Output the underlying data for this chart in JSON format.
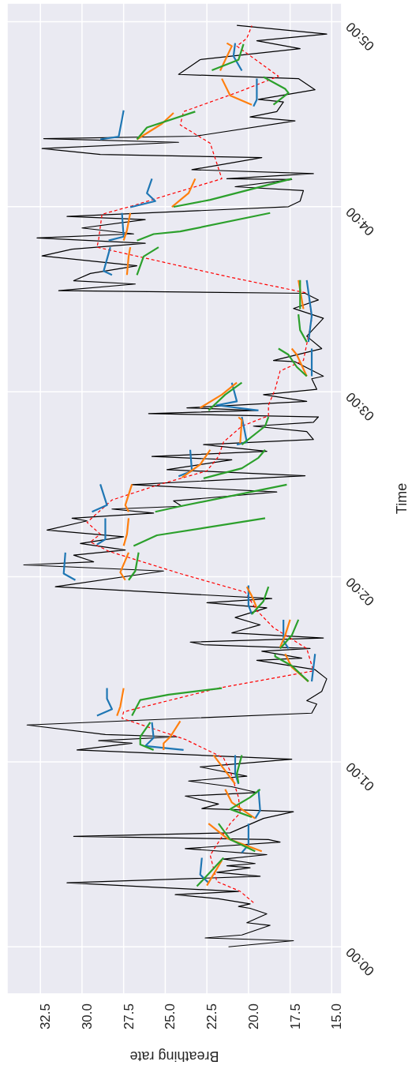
{
  "chart_data": {
    "type": "line",
    "orientation": "horizontal",
    "xlabel": "Breathing rate",
    "ylabel": "Time",
    "ylim": [
      -0.255,
      5.1
    ],
    "xlim": [
      34.5,
      14.4
    ],
    "yticks": [
      {
        "value": 0,
        "label": "00:00"
      },
      {
        "value": 1,
        "label": "01:00"
      },
      {
        "value": 2,
        "label": "02:00"
      },
      {
        "value": 3,
        "label": "03:00"
      },
      {
        "value": 4,
        "label": "04:00"
      },
      {
        "value": 5,
        "label": "05:00"
      }
    ],
    "xticks": [
      {
        "value": 32.5,
        "label": "32.5"
      },
      {
        "value": 30,
        "label": "30.0"
      },
      {
        "value": 27.5,
        "label": "27.5"
      },
      {
        "value": 25,
        "label": "25.0"
      },
      {
        "value": 22.5,
        "label": "22.5"
      },
      {
        "value": 20,
        "label": "20.0"
      },
      {
        "value": 17.5,
        "label": "17.5"
      },
      {
        "value": 15,
        "label": "15.0"
      }
    ],
    "grid": true,
    "legend": false,
    "marker": "none",
    "series": [
      {
        "color": "#000000",
        "line_style": "solid",
        "x": [
          0,
          0.033,
          0.048,
          0.064,
          0.116,
          0.13,
          0.178,
          0.208,
          0.218,
          0.232,
          0.26,
          0.282,
          0.299,
          0.346,
          0.381,
          0.403,
          0.427,
          0.438,
          0.45,
          0.474,
          0.498,
          0.531,
          0.566,
          0.58,
          0.597,
          0.616,
          0.694,
          0.73,
          0.747,
          0.772,
          0.815,
          0.834,
          0.865,
          0.896,
          0.922,
          0.972,
          1.014,
          1.064,
          1.1,
          1.114,
          1.135,
          1.147,
          1.199,
          1.263,
          1.312,
          1.33,
          1.38,
          1.448,
          1.498,
          1.548,
          1.56,
          1.597,
          1.612,
          1.633,
          1.647,
          1.669,
          1.697,
          1.74,
          1.78,
          1.832,
          1.86,
          1.882,
          1.946,
          2.031,
          2.064,
          2.081,
          2.117,
          2.145,
          2.18,
          2.216,
          2.252,
          2.302,
          2.316,
          2.344,
          2.366,
          2.381,
          2.41,
          2.458,
          2.498,
          2.546,
          2.579,
          2.632,
          2.65,
          2.678,
          2.714,
          2.742,
          2.785,
          2.814,
          2.835,
          2.864,
          2.882,
          2.899,
          2.913,
          2.948,
          2.984,
          3.013,
          3.07,
          3.084,
          3.112,
          3.162,
          3.169,
          3.233,
          3.3,
          3.397,
          3.45,
          3.496,
          3.532,
          3.546,
          3.582,
          3.6,
          3.639,
          3.681,
          3.734,
          3.77,
          3.802,
          3.831,
          3.853,
          3.885,
          3.93,
          3.947,
          4.0,
          4.03,
          4.087,
          4.108,
          4.147,
          4.151,
          4.179,
          4.2,
          4.265,
          4.282,
          4.314,
          4.348,
          4.368,
          4.381,
          4.464,
          4.485,
          4.514,
          4.566,
          4.58,
          4.632,
          4.692,
          4.715,
          4.764,
          4.795,
          4.854,
          4.897,
          4.933,
          4.98
        ],
        "values": [
          21.2,
          17.3,
          22.6,
          20.4,
          18.7,
          20.1,
          18.9,
          19.9,
          20.6,
          19.9,
          21.8,
          24.4,
          20.6,
          30.9,
          19.3,
          21.9,
          19.9,
          21.3,
          19.6,
          21.5,
          18.9,
          23.8,
          18.1,
          18.8,
          30.5,
          21.1,
          19.1,
          17.3,
          22.8,
          21.8,
          23.8,
          19.5,
          21.0,
          23.6,
          20.1,
          22.9,
          17.4,
          30.3,
          27.0,
          29.0,
          24.3,
          28.6,
          33.3,
          16.2,
          15.9,
          16.5,
          15.6,
          15.3,
          16.0,
          19.5,
          16.8,
          19.2,
          16.3,
          22.7,
          23.5,
          15.5,
          21.0,
          19.3,
          20.8,
          18.9,
          22.5,
          18.6,
          31.6,
          25.1,
          33.5,
          29.3,
          30.5,
          27.4,
          30.1,
          27.5,
          32.1,
          29.7,
          30.6,
          25.7,
          28.2,
          24.0,
          24.5,
          18.3,
          27.0,
          16.6,
          24.9,
          21.0,
          25.8,
          18.9,
          22.7,
          16.1,
          16.5,
          19.7,
          16.1,
          15.8,
          26.0,
          19.5,
          23.7,
          16.5,
          19.1,
          15.9,
          16.2,
          15.5,
          16.1,
          17.2,
          18.5,
          15.6,
          16.5,
          15.5,
          17.3,
          15.8,
          16.6,
          31.4,
          26.8,
          30.5,
          29.5,
          26.7,
          32.4,
          30.6,
          26.2,
          32.7,
          26.9,
          30.0,
          26.2,
          30.9,
          17.6,
          16.9,
          16.7,
          20.8,
          17.4,
          21.3,
          16.1,
          23.4,
          19.2,
          28.9,
          32.4,
          24.2,
          32.3,
          23.2,
          17.2,
          19.9,
          18.3,
          17.9,
          19.4,
          16.0,
          17.0,
          24.2,
          23.4,
          22.9,
          16.9,
          19.5,
          15.3,
          20.7
        ]
      },
      {
        "color": "#ff0000",
        "line_style": "dashed",
        "x": [
          0.239,
          0.3,
          0.353,
          0.495,
          0.566,
          0.666,
          0.723,
          0.808,
          0.95,
          1.021,
          1.121,
          1.235,
          1.27,
          1.398,
          1.491,
          1.612,
          1.725,
          1.818,
          1.917,
          2.017,
          2.138,
          2.188,
          2.23,
          2.294,
          2.415,
          2.5,
          2.572,
          2.65,
          2.728,
          2.814,
          2.87,
          2.927,
          3.013,
          3.112,
          3.169,
          3.39,
          3.532,
          3.617,
          3.781,
          3.824,
          3.959,
          4.004,
          4.07,
          4.151,
          4.343,
          4.442,
          4.514,
          4.62,
          4.705,
          4.868,
          4.91,
          4.978
        ],
        "values": [
          19.7,
          20.5,
          21.9,
          22.3,
          21.8,
          21.1,
          20.5,
          20.6,
          21.1,
          21.5,
          23.8,
          27.6,
          27.5,
          21.8,
          16.1,
          16.5,
          18.5,
          19.5,
          20.2,
          24.1,
          28.4,
          29.5,
          28.9,
          29.7,
          28.2,
          25.3,
          22.5,
          21.8,
          21.5,
          20.4,
          18.8,
          18.8,
          18.4,
          18.1,
          16.7,
          16.2,
          16.4,
          21.0,
          29.1,
          29.0,
          28.8,
          27.0,
          24.6,
          21.6,
          22.3,
          24.1,
          23.9,
          20.6,
          18.2,
          20.7,
          20.1,
          19.8
        ]
      },
      {
        "color": "#1f77b4",
        "line_style": "solid",
        "x": [
          0.346,
          0.39,
          0.481,
          null,
          0.509,
          0.552,
          0.666,
          null,
          0.694,
          0.737,
          0.851,
          null,
          0.88,
          0.936,
          1.036,
          null,
          1.064,
          1.085,
          1.13,
          1.213,
          null,
          1.249,
          1.284,
          1.341,
          1.398,
          null,
          1.434,
          1.583,
          null,
          1.612,
          1.654,
          1.768,
          null,
          1.797,
          1.846,
          1.953,
          null,
          1.982,
          2.017,
          2.131,
          null,
          2.174,
          2.202,
          2.316,
          null,
          2.351,
          2.387,
          2.5,
          null,
          2.543,
          2.572,
          2.686,
          null,
          2.714,
          2.728,
          2.864,
          null,
          2.899,
          2.927,
          2.948,
          3.049,
          null,
          3.084,
          3.233,
          null,
          3.269,
          3.411,
          3.603,
          null,
          3.631,
          3.652,
          3.781,
          null,
          3.817,
          3.838,
          3.966,
          null,
          3.997,
          4.03,
          4.073,
          4.151,
          null,
          4.364,
          4.378,
          4.471,
          4.521,
          null,
          4.542,
          4.578,
          4.692,
          null,
          4.735,
          4.813,
          4.884
        ],
        "values": [
          22.4,
          22.9,
          22.8,
          null,
          20.4,
          20.0,
          20.0,
          null,
          19.6,
          19.3,
          19.4,
          null,
          20.6,
          20.8,
          20.8,
          null,
          23.9,
          26.2,
          25.7,
          25.8,
          null,
          29.1,
          28.2,
          28.5,
          28.5,
          null,
          16.2,
          16.0,
          null,
          17.6,
          17.9,
          17.9,
          null,
          19.8,
          20.0,
          20.0,
          null,
          30.4,
          31.1,
          31.0,
          null,
          29.1,
          28.6,
          28.6,
          null,
          29.4,
          28.5,
          28.9,
          null,
          24.2,
          23.4,
          23.5,
          null,
          20.7,
          20.1,
          20.4,
          null,
          19.4,
          21.9,
          20.7,
          21.0,
          null,
          16.2,
          16.2,
          null,
          16.4,
          16.2,
          16.5,
          null,
          28.2,
          28.7,
          28.3,
          null,
          28.4,
          27.5,
          27.6,
          null,
          27.1,
          25.6,
          26.1,
          25.8,
          null,
          28.9,
          27.8,
          27.6,
          27.5,
          null,
          19.7,
          19.5,
          19.5,
          null,
          20.4,
          20.9,
          20.8
        ]
      },
      {
        "color": "#ff7f0e",
        "line_style": "solid",
        "x": [
          0.331,
          0.467,
          null,
          0.516,
          0.587,
          0.666,
          null,
          0.694,
          0.78,
          0.851,
          null,
          0.88,
          0.964,
          1.036,
          null,
          1.064,
          1.1,
          1.135,
          1.22,
          null,
          1.249,
          1.299,
          1.398,
          null,
          1.434,
          1.512,
          1.583,
          null,
          1.619,
          1.683,
          1.768,
          null,
          1.832,
          1.896,
          1.946,
          null,
          1.982,
          2.024,
          2.131,
          null,
          2.167,
          2.23,
          2.316,
          null,
          2.351,
          2.387,
          2.5,
          null,
          2.536,
          2.607,
          2.686,
          null,
          2.721,
          2.848,
          2.862,
          null,
          2.913,
          2.984,
          3.049,
          null,
          3.084,
          3.2,
          3.233,
          null,
          3.447,
          3.603,
          null,
          3.631,
          3.731,
          3.781,
          null,
          3.817,
          3.873,
          3.966,
          null,
          3.999,
          4.073,
          4.151,
          null,
          4.364,
          4.448,
          4.507,
          null,
          4.551,
          4.601,
          4.692,
          null,
          4.735,
          4.868,
          4.884
        ],
        "values": [
          22.5,
          21.6,
          null,
          19.2,
          21.3,
          22.4,
          null,
          19.6,
          21.0,
          21.4,
          null,
          20.8,
          21.5,
          22.1,
          null,
          25.1,
          25.1,
          24.7,
          24.1,
          null,
          27.9,
          27.7,
          27.5,
          null,
          16.4,
          17.4,
          17.8,
          null,
          18.1,
          17.8,
          17.5,
          null,
          19.5,
          19.8,
          20.1,
          null,
          27.4,
          27.7,
          27.2,
          null,
          27.5,
          27.3,
          27.2,
          null,
          27.2,
          27.4,
          27.0,
          null,
          24.0,
          22.9,
          22.3,
          null,
          20.5,
          20.4,
          20.6,
          null,
          22.9,
          21.6,
          20.7,
          null,
          16.5,
          17.1,
          17.4,
          null,
          16.7,
          17.0,
          null,
          27.3,
          27.2,
          27.1,
          null,
          27.5,
          27.3,
          27.1,
          null,
          24.6,
          23.6,
          23.2,
          null,
          26.7,
          25.2,
          24.5,
          null,
          19.8,
          21.1,
          21.6,
          null,
          21.7,
          21.0,
          21.3
        ]
      },
      {
        "color": "#2ca02c",
        "line_style": "solid",
        "x": [
          0.327,
          0.481,
          null,
          0.516,
          0.58,
          0.666,
          null,
          0.701,
          0.744,
          0.808,
          0.851,
          null,
          0.885,
          0.936,
          1.036,
          null,
          1.064,
          1.093,
          1.135,
          1.213,
          null,
          1.249,
          1.334,
          1.363,
          1.398,
          null,
          1.434,
          1.519,
          1.569,
          1.583,
          null,
          1.612,
          1.683,
          1.768,
          null,
          1.797,
          1.868,
          1.946,
          null,
          1.982,
          2.031,
          2.131,
          null,
          2.167,
          2.224,
          2.316,
          null,
          2.351,
          2.381,
          2.498,
          null,
          2.532,
          2.586,
          2.643,
          2.686,
          null,
          2.714,
          2.814,
          2.864,
          null,
          2.899,
          2.984,
          3.049,
          null,
          3.084,
          3.134,
          3.2,
          3.233,
          null,
          3.269,
          3.333,
          3.418,
          null,
          3.447,
          3.603,
          null,
          3.631,
          3.731,
          3.781,
          null,
          3.817,
          3.852,
          3.866,
          3.966,
          null,
          3.999,
          4.037,
          4.151,
          null,
          4.364,
          4.428,
          4.514,
          null,
          4.551,
          4.615,
          4.637,
          4.701,
          null,
          4.737,
          4.794,
          4.879
        ],
        "values": [
          23.1,
          21.5,
          null,
          19.6,
          21.1,
          21.8,
          null,
          19.8,
          21.1,
          19.9,
          19.3,
          null,
          20.6,
          20.7,
          20.4,
          null,
          25.7,
          26.5,
          26.5,
          25.9,
          null,
          27.0,
          26.5,
          24.8,
          21.6,
          null,
          16.4,
          17.4,
          18.4,
          18.4,
          null,
          18.1,
          17.4,
          17.0,
          null,
          19.8,
          19.1,
          18.8,
          null,
          27.2,
          26.8,
          26.6,
          null,
          26.9,
          25.5,
          19.0,
          null,
          25.6,
          24.1,
          17.7,
          null,
          22.7,
          20.4,
          19.4,
          19.0,
          null,
          20.4,
          19.0,
          18.8,
          null,
          22.4,
          21.4,
          20.4,
          null,
          16.5,
          17.1,
          17.6,
          18.2,
          null,
          16.5,
          16.9,
          17.0,
          null,
          16.9,
          16.9,
          null,
          26.7,
          26.3,
          25.4,
          null,
          26.7,
          25.7,
          24.1,
          18.7,
          null,
          24.5,
          22.3,
          17.4,
          null,
          26.7,
          26.1,
          23.2,
          null,
          18.5,
          17.6,
          17.8,
          19.1,
          null,
          22.2,
          20.6,
          20.3
        ]
      }
    ]
  }
}
